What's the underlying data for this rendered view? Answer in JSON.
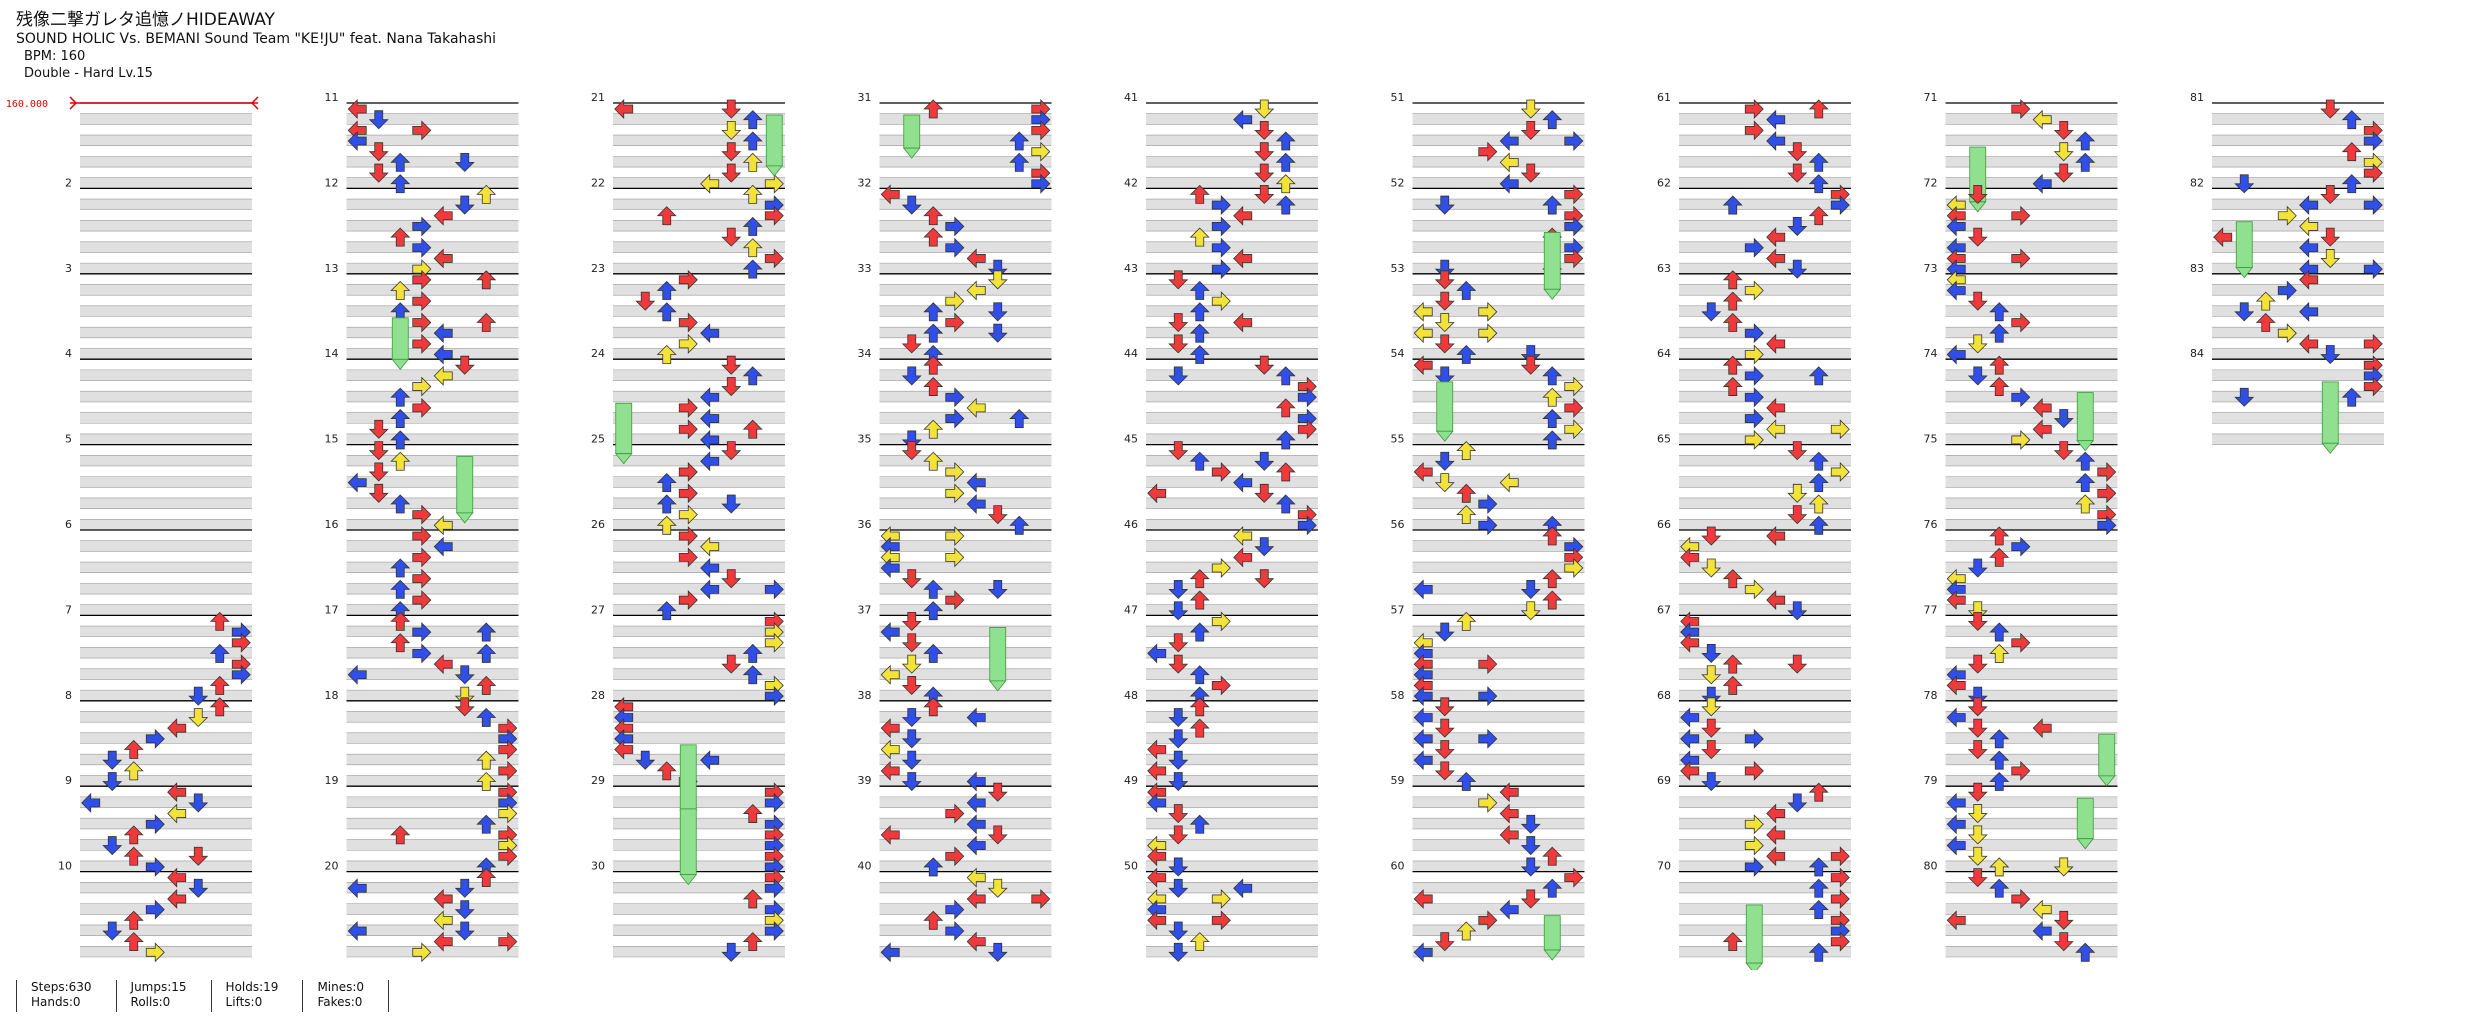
{
  "song": {
    "title": "残像二撃ガレタ追憶ノHIDEAWAY",
    "artist": "SOUND HOLIC Vs. BEMANI Sound Team \"KE!JU\" feat. Nana Takahashi",
    "bpm_label": "BPM: 160",
    "difficulty_label": "Double - Hard  Lv.15"
  },
  "bpm_marker": "160.000",
  "stats": {
    "steps": "Steps:630",
    "hands": "Hands:0",
    "jumps": "Jumps:15",
    "rolls": "Rolls:0",
    "holds": "Holds:19",
    "lifts": "Lifts:0",
    "mines": "Mines:0",
    "fakes": "Fakes:0"
  },
  "measure_count": 84,
  "colors": {
    "quarter": "#ee3a3a",
    "eighth": "#2f4fe6",
    "sixteenth": "#f2e23a",
    "hold": "#8fe08f",
    "stripe": "#e0e0e0",
    "measure_line": "#000000",
    "bpm": "#dd0000"
  }
}
